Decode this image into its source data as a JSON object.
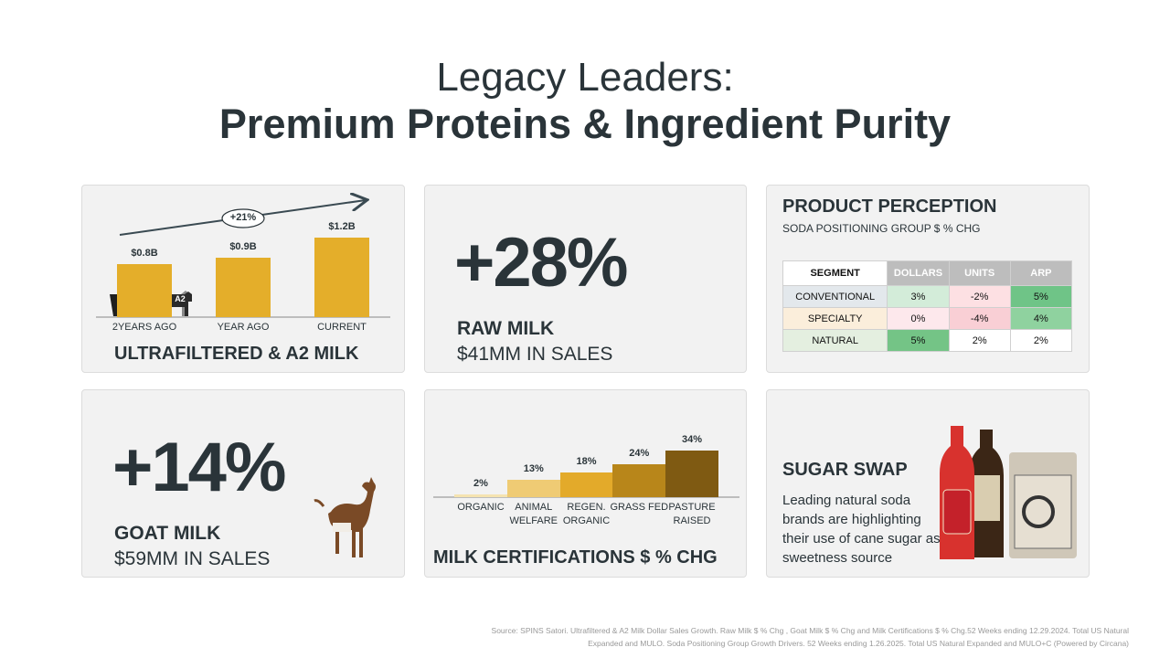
{
  "title_line1": "Legacy Leaders:",
  "title_line2": "Premium Proteins & Ingredient Purity",
  "chart_data": [
    {
      "type": "bar",
      "title": "ULTRAFILTERED & A2 MILK",
      "categories": [
        "2YEARS AGO",
        "YEAR AGO",
        "CURRENT"
      ],
      "values": [
        0.8,
        0.9,
        1.2
      ],
      "value_labels": [
        "$0.8B",
        "$0.9B",
        "$1.2B"
      ],
      "color": "#e4ae2a",
      "annotation": "+21%",
      "cow_labels": [
        "A2",
        "A1",
        "A2"
      ]
    },
    {
      "type": "bar",
      "title": "MILK CERTIFICATIONS $ % CHG",
      "categories": [
        "ORGANIC",
        "ANIMAL WELFARE",
        "REGEN. ORGANIC",
        "GRASS FED",
        "PASTURE RAISED"
      ],
      "values": [
        2,
        13,
        18,
        24,
        34
      ],
      "value_labels": [
        "2%",
        "13%",
        "18%",
        "24%",
        "34%"
      ],
      "colors": [
        "#f5e3b0",
        "#efcb74",
        "#e3aa2a",
        "#b8861a",
        "#7f5a12"
      ]
    }
  ],
  "raw_milk": {
    "stat": "+28%",
    "label": "RAW MILK",
    "sales": "$41MM IN SALES"
  },
  "goat_milk": {
    "stat": "+14%",
    "label": "GOAT MILK",
    "sales": "$59MM IN SALES"
  },
  "perception": {
    "title": "PRODUCT PERCEPTION",
    "subtitle": "SODA POSITIONING GROUP $ % CHG",
    "table": {
      "header": [
        "SEGMENT",
        "DOLLARS",
        "UNITS",
        "ARP"
      ],
      "rows": [
        [
          "CONVENTIONAL",
          "3%",
          "-2%",
          "5%"
        ],
        [
          "SPECIALTY",
          "0%",
          "-4%",
          "4%"
        ],
        [
          "NATURAL",
          "5%",
          "2%",
          "2%"
        ]
      ],
      "header_colors": [
        "#ffffff",
        "#bdbdbd",
        "#bdbdbd",
        "#bdbdbd"
      ],
      "cell_colors": [
        [
          "#e3e8ec",
          "#d3ecd9",
          "#fde0e3",
          "#6fc487"
        ],
        [
          "#fbeedb",
          "#fde8ec",
          "#f9cfd5",
          "#8fd29f"
        ],
        [
          "#e4efe0",
          "#74c486",
          "#ffffff",
          "#ffffff"
        ]
      ]
    }
  },
  "sugar_swap": {
    "title": "SUGAR SWAP",
    "body": "Leading natural soda brands are highlighting their use of cane sugar as sweetness source"
  },
  "footnote": "Source: SPINS Satori. Ultrafiltered & A2 Milk Dollar Sales Growth. Raw Milk $ % Chg , Goat Milk $ % Chg and Milk Certifications $ % Chg.52 Weeks ending 12.29.2024. Total US Natural Expanded and MULO. Soda Positioning Group Growth Drivers. 52 Weeks ending 1.26.2025. Total US Natural Expanded and MULO+C (Powered by Circana)"
}
